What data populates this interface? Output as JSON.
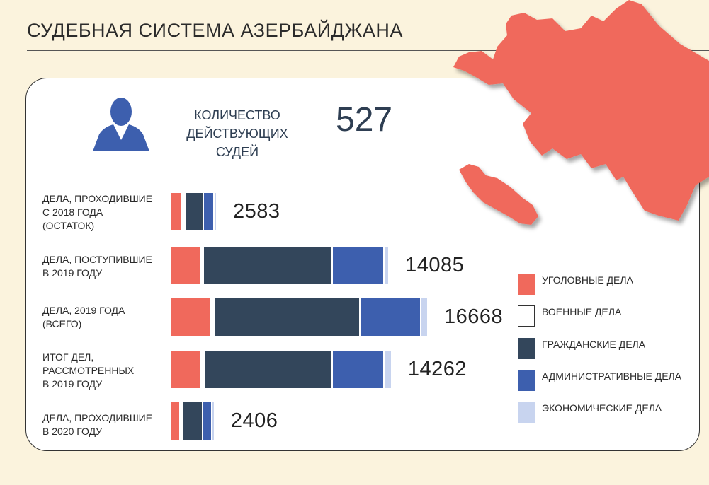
{
  "title": "СУДЕБНАЯ СИСТЕМА АЗЕРБАЙДЖАНА",
  "judges": {
    "label_lines": [
      "КОЛИЧЕСТВО",
      "ДЕЙСТВУЮЩИХ",
      "СУДЕЙ"
    ],
    "value": "527"
  },
  "colors": {
    "criminal": "#f0695c",
    "military": "#ffffff",
    "civil": "#33465b",
    "administrative": "#3d5fae",
    "economic": "#c8d4ef",
    "map": "#f0695c"
  },
  "chart_data": {
    "type": "bar",
    "orientation": "horizontal",
    "stacked": true,
    "categories": [
      "ДЕЛА, ПРОХОДИВШИЕ С 2018 ГОДА (ОСТАТОК)",
      "ДЕЛА, ПОСТУПИВШИЕ В 2019 ГОДУ",
      "ДЕЛА, 2019 ГОДА (ВСЕГО)",
      "ИТОГ ДЕЛ, РАССМОТРЕННЫХ В 2019 ГОДУ",
      "ДЕЛА, ПРОХОДИВШИЕ В 2020 ГОДУ"
    ],
    "category_lines": [
      [
        "ДЕЛА, ПРОХОДИВШИЕ",
        "С 2018 ГОДА",
        "(ОСТАТОК)"
      ],
      [
        "ДЕЛА, ПОСТУПИВШИЕ",
        "В 2019 ГОДУ"
      ],
      [
        "ДЕЛА, 2019 ГОДА",
        "(ВСЕГО)"
      ],
      [
        "ИТОГ ДЕЛ,",
        "РАССМОТРЕННЫХ",
        "В 2019 ГОДУ"
      ],
      [
        "ДЕЛА, ПРОХОДИВШИЕ",
        "В 2020 ГОДУ"
      ]
    ],
    "totals": [
      "2583",
      "14085",
      "16668",
      "14262",
      "2406"
    ],
    "series": [
      {
        "name": "УГОЛОВНЫЕ ДЕЛА",
        "key": "criminal",
        "values": [
          720,
          1930,
          2640,
          2000,
          580
        ]
      },
      {
        "name": "ВОЕННЫЕ ДЕЛА",
        "key": "military",
        "values": [
          40,
          110,
          140,
          130,
          30
        ]
      },
      {
        "name": "ГРАЖДАНСКИЕ ДЕЛА",
        "key": "civil",
        "values": [
          1110,
          8450,
          9560,
          8350,
          1210
        ]
      },
      {
        "name": "АДМИНИСТРАТИВНЫЕ ДЕЛА",
        "key": "administrative",
        "values": [
          610,
          3360,
          3970,
          3360,
          510
        ]
      },
      {
        "name": "ЭКОНОМИЧЕСКИЕ ДЕЛА",
        "key": "economic",
        "values": [
          103,
          235,
          358,
          422,
          76
        ]
      }
    ],
    "legend_position": "right"
  }
}
